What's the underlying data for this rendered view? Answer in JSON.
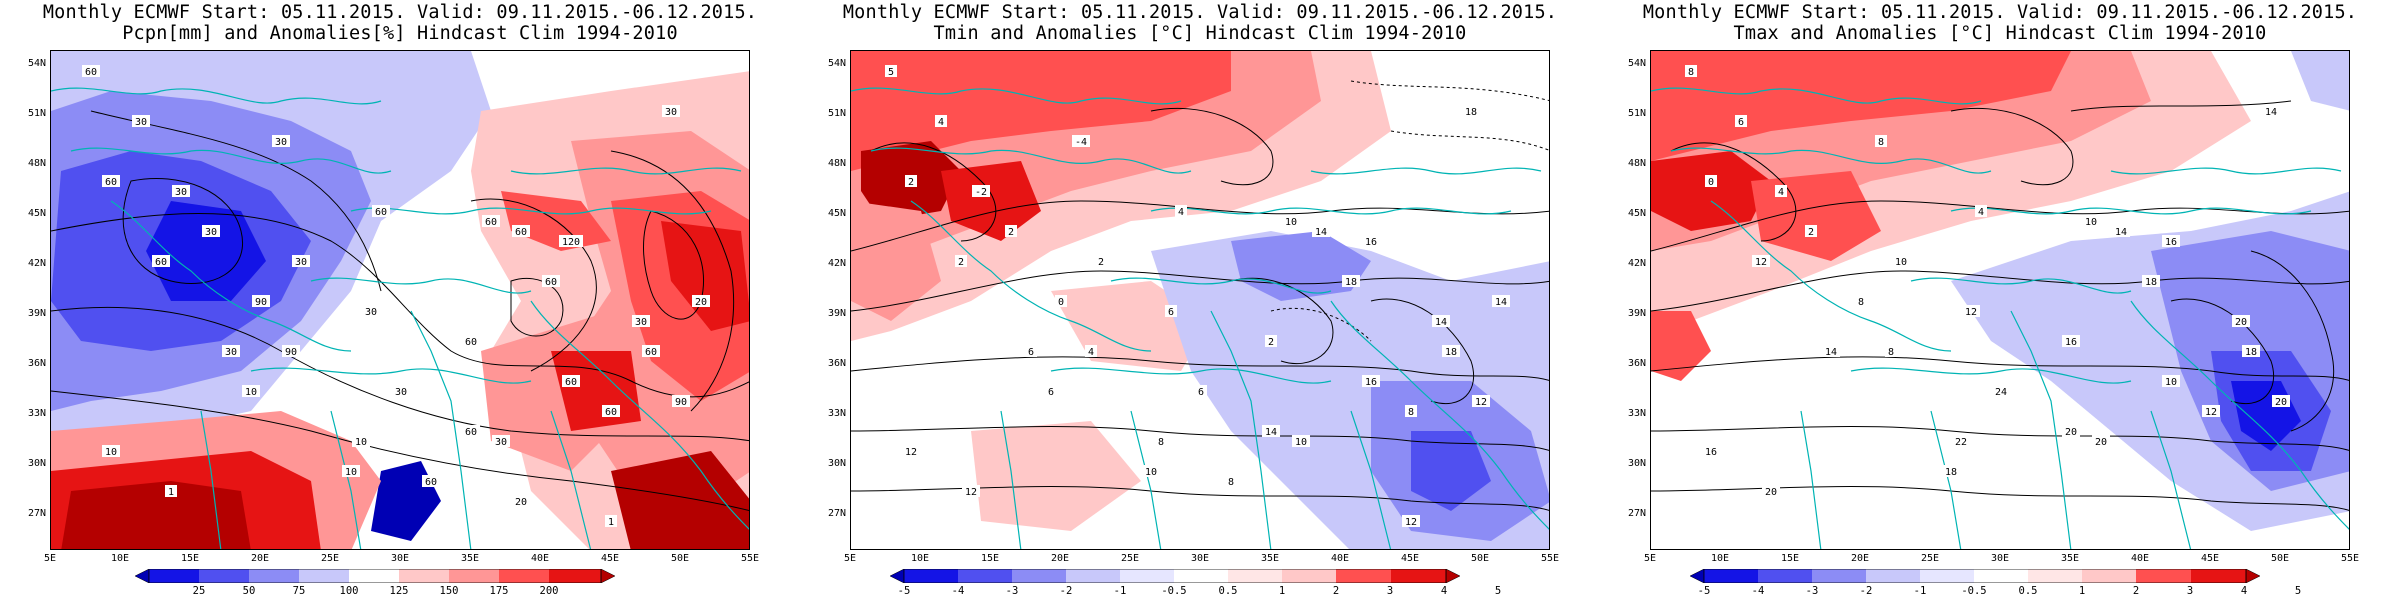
{
  "panels": [
    {
      "title_line1": "Monthly ECMWF Start: 05.11.2015. Valid: 09.11.2015.-06.12.2015.",
      "title_line2": "Pcpn[mm] and Anomalies[%] Hindcast Clim 1994-2010",
      "lat_labels": [
        "54N",
        "51N",
        "48N",
        "45N",
        "42N",
        "39N",
        "36N",
        "33N",
        "30N",
        "27N"
      ],
      "lon_labels": [
        "5E",
        "10E",
        "15E",
        "20E",
        "25E",
        "30E",
        "35E",
        "40E",
        "45E",
        "50E",
        "55E"
      ],
      "colorbar": {
        "colors": [
          "#0000b4",
          "#1414e6",
          "#5050f0",
          "#8c8cf5",
          "#c8c8fa",
          "#ffffff",
          "#ffc8c8",
          "#ff9696",
          "#ff5050",
          "#e61414",
          "#b40000"
        ],
        "labels": [
          "25",
          "50",
          "75",
          "100",
          "125",
          "150",
          "175",
          "200"
        ]
      },
      "contour_labels": [
        "60",
        "30",
        "60",
        "30",
        "30",
        "30",
        "60",
        "30",
        "90",
        "60",
        "30",
        "90",
        "60",
        "30",
        "60",
        "60",
        "120",
        "60",
        "30",
        "60",
        "90",
        "60",
        "30",
        "10",
        "60",
        "30",
        "10",
        "1",
        "10",
        "60",
        "30",
        "20",
        "1",
        "10",
        "60",
        "20"
      ]
    },
    {
      "title_line1": "Monthly ECMWF Start: 05.11.2015. Valid: 09.11.2015.-06.12.2015.",
      "title_line2": "Tmin and Anomalies [°C] Hindcast Clim 1994-2010",
      "lat_labels": [
        "54N",
        "51N",
        "48N",
        "45N",
        "42N",
        "39N",
        "36N",
        "33N",
        "30N",
        "27N"
      ],
      "lon_labels": [
        "5E",
        "10E",
        "15E",
        "20E",
        "25E",
        "30E",
        "35E",
        "40E",
        "45E",
        "50E",
        "55E"
      ],
      "colorbar": {
        "colors": [
          "#0000b4",
          "#1414e6",
          "#5050f0",
          "#8c8cf5",
          "#c8c8fa",
          "#ffffff",
          "#ffffff",
          "#ffc8c8",
          "#ff9696",
          "#ff5050",
          "#e61414",
          "#b40000"
        ],
        "labels": [
          "-5",
          "-4",
          "-3",
          "-2",
          "-1",
          "-0.5",
          "0.5",
          "1",
          "2",
          "3",
          "4",
          "5"
        ]
      },
      "contour_labels": [
        "5",
        "4",
        "2",
        "-2",
        "-4",
        "2",
        "4",
        "2",
        "0",
        "2",
        "6",
        "4",
        "2",
        "6",
        "10",
        "14",
        "16",
        "18",
        "14",
        "18",
        "12",
        "8",
        "10",
        "12",
        "14",
        "6",
        "8",
        "12",
        "10",
        "16",
        "18",
        "14",
        "12",
        "6",
        "8"
      ]
    },
    {
      "title_line1": "Monthly ECMWF Start: 05.11.2015. Valid: 09.11.2015.-06.12.2015.",
      "title_line2": "Tmax and Anomalies [°C] Hindcast Clim 1994-2010",
      "lat_labels": [
        "54N",
        "51N",
        "48N",
        "45N",
        "42N",
        "39N",
        "36N",
        "33N",
        "30N",
        "27N"
      ],
      "lon_labels": [
        "5E",
        "10E",
        "15E",
        "20E",
        "25E",
        "30E",
        "35E",
        "40E",
        "45E",
        "50E",
        "55E"
      ],
      "colorbar": {
        "colors": [
          "#0000b4",
          "#1414e6",
          "#5050f0",
          "#8c8cf5",
          "#c8c8fa",
          "#ffffff",
          "#ffffff",
          "#ffc8c8",
          "#ff9696",
          "#ff5050",
          "#e61414",
          "#b40000"
        ],
        "labels": [
          "-5",
          "-4",
          "-3",
          "-2",
          "-1",
          "-0.5",
          "0.5",
          "1",
          "2",
          "3",
          "4",
          "5"
        ]
      },
      "contour_labels": [
        "8",
        "6",
        "0",
        "4",
        "8",
        "2",
        "4",
        "10",
        "8",
        "12",
        "14",
        "8",
        "16",
        "12",
        "10",
        "14",
        "16",
        "18",
        "20",
        "18",
        "20",
        "12",
        "20",
        "16",
        "20",
        "24",
        "22",
        "20",
        "18",
        "10",
        "14"
      ]
    }
  ]
}
